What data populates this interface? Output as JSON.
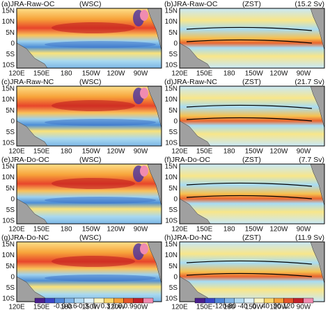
{
  "panels": [
    {
      "label": "(a)JRA-Raw-OC",
      "field": "(WSC)"
    },
    {
      "label": "(b)JRA-Raw-OC",
      "field": "(ZST)",
      "transport": "(15.2 Sv)"
    },
    {
      "label": "(c)JRA-Raw-NC",
      "field": "(WSC)"
    },
    {
      "label": "(d)JRA-Raw-NC",
      "field": "(ZST)",
      "transport": "(21.7 Sv)"
    },
    {
      "label": "(e)JRA-Do-OC",
      "field": "(WSC)"
    },
    {
      "label": "(f)JRA-Do-OC",
      "field": "(ZST)",
      "transport": "(7.7 Sv)"
    },
    {
      "label": "(g)JRA-Do-NC",
      "field": "(WSC)"
    },
    {
      "label": "(h)JRA-Do-NC",
      "field": "(ZST)",
      "transport": "(11.9 Sv)"
    }
  ],
  "lat_ticks": [
    "15N",
    "10N",
    "5N",
    "0",
    "5S",
    "10S"
  ],
  "lon_ticks": [
    "120E",
    "150E",
    "180",
    "150W",
    "120W",
    "90W"
  ],
  "colorbars": [
    {
      "ticks": [
        "-0.9",
        "-0.6",
        "-0.3",
        "0",
        "0.3",
        "0.6",
        "0.9"
      ]
    },
    {
      "ticks": [
        "-120",
        "-80",
        "-40",
        "0",
        "40",
        "80",
        "120"
      ]
    }
  ]
}
